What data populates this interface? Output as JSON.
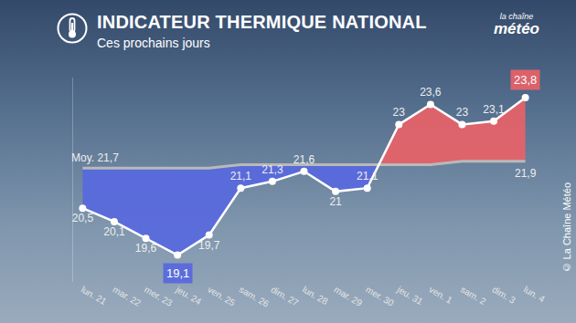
{
  "chart_data": {
    "type": "line",
    "title": "INDICATEUR THERMIQUE NATIONAL",
    "subtitle": "Ces prochains jours",
    "logo": "la chaîne météo",
    "source": "© La Chaîne Météo",
    "categories": [
      "lun. 21",
      "mar. 22",
      "mer. 23",
      "jeu. 24",
      "ven. 25",
      "sam. 26",
      "dim. 27",
      "lun. 28",
      "mar. 29",
      "mer. 30",
      "jeu. 31",
      "ven. 1",
      "sam. 2",
      "dim. 3",
      "lun. 4"
    ],
    "series": [
      {
        "color": "#ffffff",
        "marker": "circle",
        "line_style": "solid",
        "values": [
          20.5,
          20.1,
          19.6,
          19.1,
          19.7,
          21.1,
          21.3,
          21.6,
          21,
          21.1,
          23,
          23.6,
          23,
          23.1,
          23.8
        ],
        "value_labels": [
          "20,5",
          "20,1",
          "19,6",
          "19,1",
          "19,7",
          "21,1",
          "21,3",
          "21,6",
          "21",
          "21,1",
          "23",
          "23,6",
          "23",
          "23,1",
          "23,8"
        ]
      },
      {
        "name": "Moy.",
        "color": "#b9b9b9",
        "line_style": "solid",
        "values": [
          21.7,
          21.7,
          21.7,
          21.7,
          21.7,
          21.8,
          21.8,
          21.8,
          21.8,
          21.8,
          21.8,
          21.8,
          21.9,
          21.9,
          21.9
        ],
        "value_labels": [
          "21,7",
          null,
          null,
          null,
          null,
          null,
          null,
          null,
          null,
          null,
          null,
          null,
          null,
          null,
          "21,9"
        ]
      }
    ],
    "ylim": [
      18.3,
      24.4
    ],
    "yticks": [],
    "grid": false,
    "data_labels": true,
    "tick_labels": "x"
  }
}
